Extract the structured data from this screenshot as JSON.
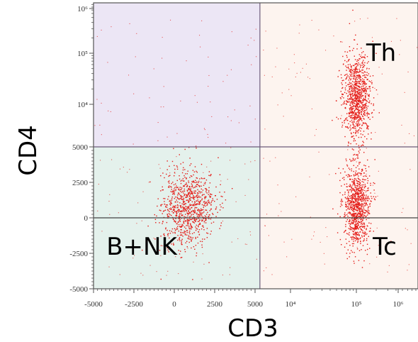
{
  "chart_data": {
    "type": "scatter",
    "title": "",
    "xlabel": "CD3",
    "ylabel": "CD4",
    "x_scale": "linear below 5000, logarithmic above",
    "y_scale": "linear below 5000, logarithmic above",
    "xlim": [
      -5000,
      1000000
    ],
    "ylim": [
      -5000,
      1000000
    ],
    "x_tick_labels": [
      "-5000",
      "-2500",
      "0",
      "2500",
      "5000",
      "10⁴",
      "10⁵",
      "10⁶"
    ],
    "y_tick_labels": [
      "10⁶",
      "10⁵",
      "10⁴",
      "5000",
      "2500",
      "0",
      "-2500",
      "-5000"
    ],
    "gates": {
      "x": 5500,
      "y_lines": [
        5000,
        0
      ]
    },
    "quadrant_colors": {
      "upper_left": "#ece6f5",
      "lower_left": "#e4f1ec",
      "right": "#fdf4ef"
    },
    "point_color": "#e41b17",
    "populations": [
      {
        "label": "Th",
        "center_cd3": 100000,
        "center_cd4": 15000,
        "relative_size": "large"
      },
      {
        "label": "Tc",
        "center_cd3": 100000,
        "center_cd4": 900,
        "relative_size": "large"
      },
      {
        "label": "B+NK",
        "center_cd3": 800,
        "center_cd4": 700,
        "relative_size": "large"
      }
    ],
    "grid": false,
    "legend": "none"
  }
}
